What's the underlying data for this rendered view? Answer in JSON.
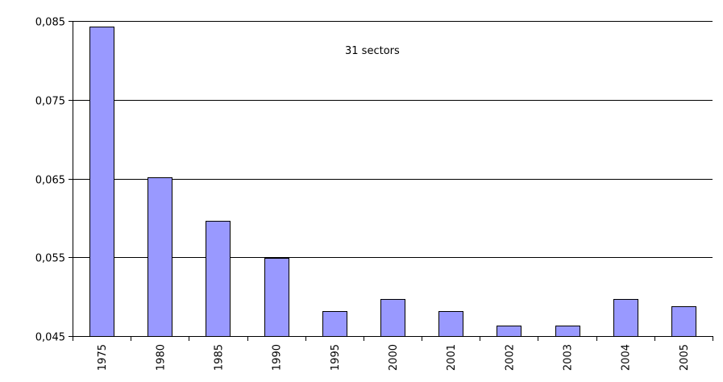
{
  "chart_data": {
    "type": "bar",
    "title": "",
    "xlabel": "",
    "ylabel": "",
    "annotation": "31 sectors",
    "categories": [
      "1975",
      "1980",
      "1985",
      "1990",
      "1995",
      "2000",
      "2001",
      "2002",
      "2003",
      "2004",
      "2005"
    ],
    "values": [
      0.0843,
      0.0652,
      0.0596,
      0.0549,
      0.0482,
      0.0497,
      0.0482,
      0.0463,
      0.0463,
      0.0497,
      0.0488
    ],
    "ylim": [
      0.045,
      0.085
    ],
    "yticks": [
      0.045,
      0.055,
      0.065,
      0.075,
      0.085
    ],
    "ytick_labels": [
      "0,045",
      "0,055",
      "0,065",
      "0,075",
      "0,085"
    ],
    "grid": true,
    "bar_color": "#9999ff"
  }
}
